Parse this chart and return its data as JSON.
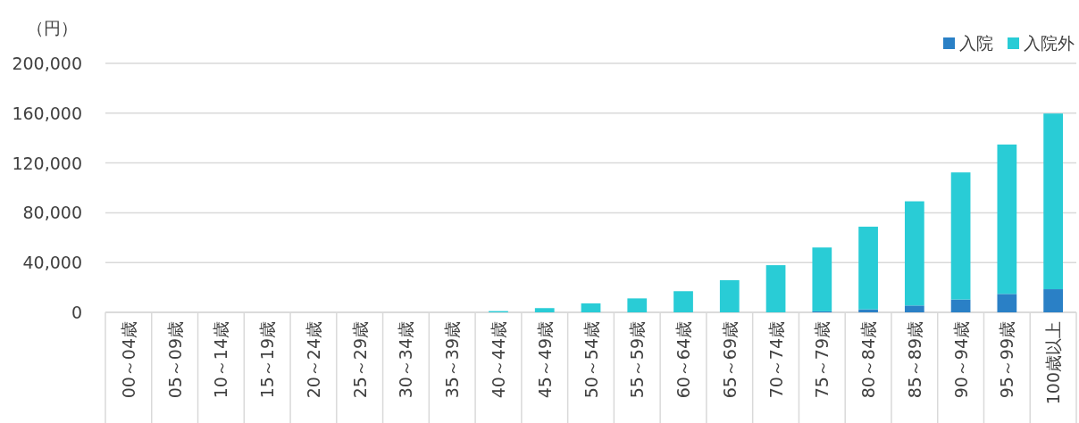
{
  "chart_data": {
    "type": "bar",
    "stacked": true,
    "ylabel": "（円）",
    "categories": [
      "00～04歳",
      "05～09歳",
      "10～14歳",
      "15～19歳",
      "20～24歳",
      "25～29歳",
      "30～34歳",
      "35～39歳",
      "40～44歳",
      "45～49歳",
      "50～54歳",
      "55～59歳",
      "60～64歳",
      "65～69歳",
      "70～74歳",
      "75～79歳",
      "80～84歳",
      "85～89歳",
      "90～94歳",
      "95～99歳",
      "100歳以上"
    ],
    "series": [
      {
        "name": "入院",
        "color": "#2a80c6",
        "values": [
          0,
          0,
          0,
          0,
          0,
          0,
          0,
          0,
          0,
          0,
          0,
          0,
          0,
          0,
          null,
          800,
          2400,
          5500,
          10300,
          14800,
          18600
        ]
      },
      {
        "name": "入院外",
        "color": "#29ccd6",
        "values": [
          0,
          0,
          0,
          0,
          0,
          0,
          0,
          null,
          1000,
          3400,
          7200,
          11200,
          17000,
          25800,
          37900,
          51300,
          66400,
          83700,
          102100,
          120000,
          141100
        ]
      }
    ],
    "ylim": [
      0,
      200000
    ],
    "yticks": [
      0,
      {
        "value": 40000,
        "label": "40,000"
      },
      {
        "value": 80000,
        "label": "80,000"
      },
      {
        "value": 120000,
        "label": "120,000"
      },
      {
        "value": 160000,
        "label": "160,000"
      },
      {
        "value": 200000,
        "label": "200,000"
      }
    ],
    "grid": "y",
    "legend": "top right"
  }
}
